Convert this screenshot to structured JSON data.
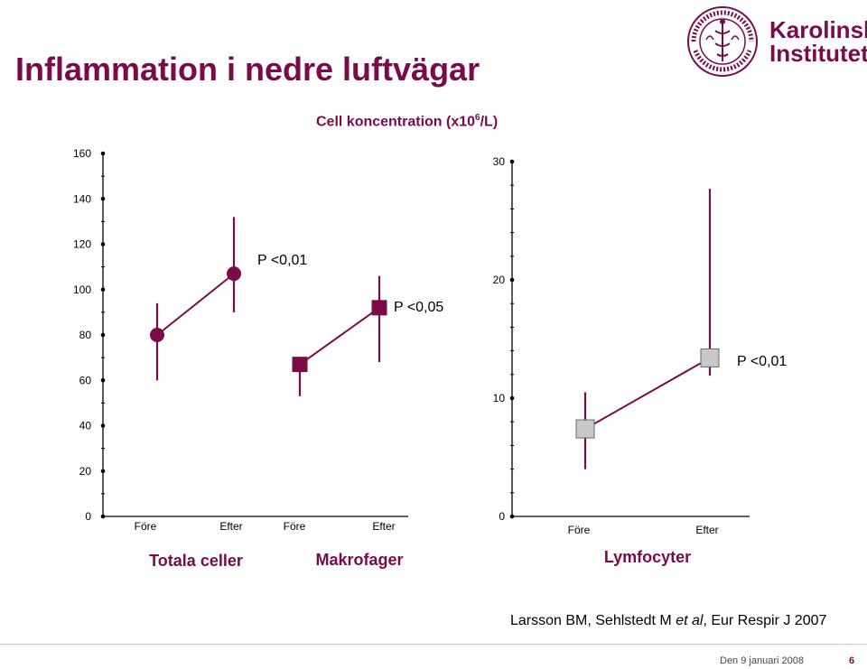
{
  "slide": {
    "title": "Inflammation i nedre luftvägar",
    "subtitle_main": "Cell koncentration (x10",
    "subtitle_sup": "6",
    "subtitle_end": "/L)",
    "citation_pre": "Larsson BM, Sehlstedt M ",
    "citation_em": "et al",
    "citation_post": ", Eur Respir J 2007",
    "footer_date": "Den 9 januari 2008",
    "page_number": "6"
  },
  "logo": {
    "ring_text": "KAROLINSKA INSTITUTET · ANNO 1810 ·",
    "word_line1": "Karolinska",
    "word_line2": "Institutet",
    "color": "#7a0b4b"
  },
  "colors": {
    "primary": "#7a0b4b",
    "lymph_fill": "#c8c8c8",
    "axis": "#000000"
  },
  "chart_data": [
    {
      "type": "scatter",
      "ylim": [
        0,
        160
      ],
      "y_ticks": [
        "160",
        "140",
        "120",
        "100",
        "80",
        "60",
        "40",
        "20",
        "0"
      ],
      "groups": [
        {
          "label": "Totala celler",
          "categories": [
            "Före",
            "Efter"
          ],
          "marker": "circle",
          "values": [
            80,
            107
          ],
          "error_low": [
            60,
            90
          ],
          "error_high": [
            94,
            132
          ],
          "p_label": "P <0,01"
        },
        {
          "label": "Makrofager",
          "categories": [
            "Före",
            "Efter"
          ],
          "marker": "square",
          "values": [
            67,
            92
          ],
          "error_low": [
            53,
            68
          ],
          "error_high": [
            67,
            106
          ],
          "p_label": "P <0,05"
        }
      ]
    },
    {
      "type": "scatter",
      "ylim": [
        0,
        30
      ],
      "y_ticks": [
        "30",
        "20",
        "10",
        "0"
      ],
      "groups": [
        {
          "label": "Lymfocyter",
          "categories": [
            "Före",
            "Efter"
          ],
          "marker": "square",
          "values": [
            7.4,
            13.4
          ],
          "error_low": [
            4,
            11.9
          ],
          "error_high": [
            10.5,
            27.7
          ],
          "p_label": "P <0,01"
        }
      ]
    }
  ]
}
